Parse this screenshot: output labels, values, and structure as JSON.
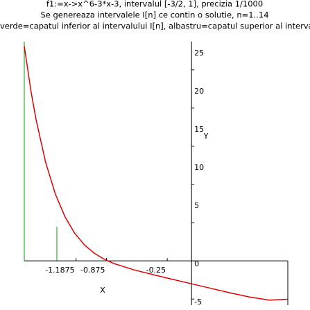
{
  "chart_data": {
    "type": "line",
    "title": "f1:=x->x^6-3*x-3, intervalul [-3/2, 1], precizia 1/1000",
    "subtitle": "Se genereaza intervalele I[n] ce contin o solutie, n=1..14",
    "caption": "verde=capatul inferior al intervalului I[n], albastru=capatul superior al intervalului",
    "x_label": "X",
    "y_label": "Y",
    "x": [
      -1.72,
      -1.65,
      -1.6,
      -1.5,
      -1.4,
      -1.3,
      -1.2,
      -1.1,
      -1.0,
      -0.9,
      -0.8,
      -0.6,
      -0.4,
      -0.2,
      0,
      0.2,
      0.4,
      0.6,
      0.8,
      0.99
    ],
    "series": [
      {
        "name": "f1",
        "color": "#e00000",
        "values": [
          28.1,
          22.13,
          18.58,
          12.89,
          8.73,
          5.73,
          3.59,
          2.07,
          1,
          0.23,
          -0.34,
          -1.15,
          -1.8,
          -2.4,
          -3,
          -3.6,
          -4.2,
          -4.75,
          -5.14,
          -5.03
        ]
      }
    ],
    "xlim": [
      -1.72,
      0.99
    ],
    "ylim": [
      -5.8,
      28.7
    ],
    "xticks": [
      -1.1875,
      -0.875,
      -0.25
    ],
    "yticks": [
      -5,
      0,
      5,
      10,
      15,
      20,
      25
    ]
  }
}
